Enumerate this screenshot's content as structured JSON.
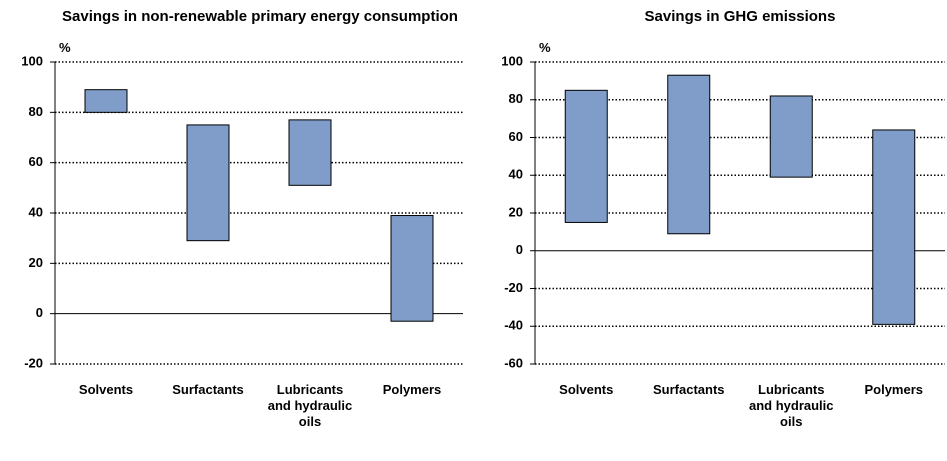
{
  "chart_data": [
    {
      "type": "floating-bar",
      "title": "Savings in non-renewable primary energy consumption",
      "y_label": "%",
      "categories": [
        "Solvents",
        "Surfactants",
        "Lubricants and hydraulic oils",
        "Polymers"
      ],
      "values": [
        [
          80,
          89
        ],
        [
          29,
          75
        ],
        [
          51,
          77
        ],
        [
          -3,
          39
        ]
      ],
      "color": "#7f9dc8",
      "ylim": [
        -20,
        100
      ],
      "yticks": [
        -20,
        0,
        20,
        40,
        60,
        80,
        100
      ],
      "grid": true
    },
    {
      "type": "floating-bar",
      "title": "Savings in GHG emissions",
      "y_label": "%",
      "categories": [
        "Solvents",
        "Surfactants",
        "Lubricants and hydraulic oils",
        "Polymers"
      ],
      "values": [
        [
          15,
          85
        ],
        [
          9,
          93
        ],
        [
          39,
          82
        ],
        [
          -39,
          64
        ]
      ],
      "color": "#7f9dc8",
      "ylim": [
        -60,
        100
      ],
      "yticks": [
        -60,
        -40,
        -20,
        0,
        20,
        40,
        60,
        80,
        100
      ],
      "grid": true
    }
  ]
}
